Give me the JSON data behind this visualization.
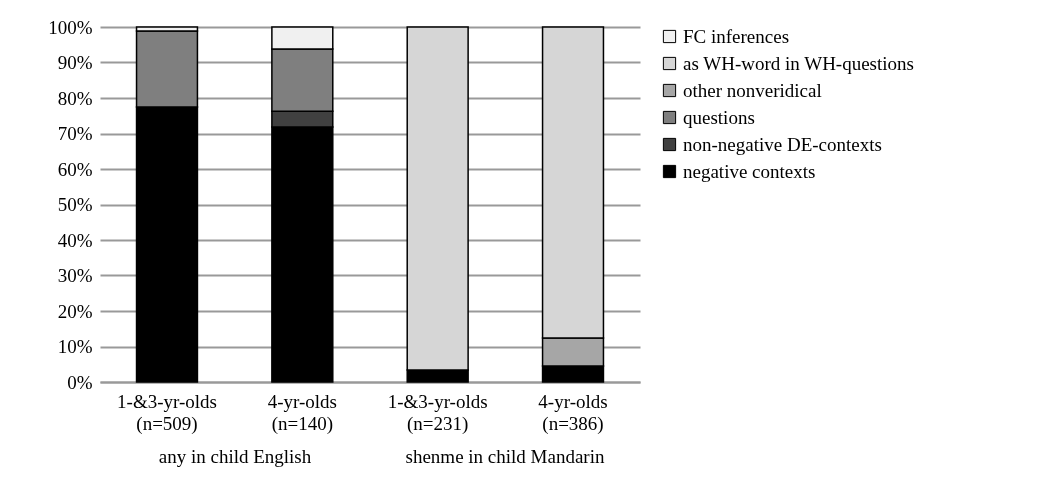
{
  "chart_data": {
    "type": "bar",
    "stacked": true,
    "grid": "y",
    "legend": "right",
    "categories": [
      "1-&3-yr-olds\n(n=509)",
      "4-yr-olds\n(n=140)",
      "1-&3-yr-olds\n(n=231)",
      "4-yr-olds\n(n=386)"
    ],
    "series": [
      {
        "name": "negative contexts",
        "color": "#000000",
        "values": [
          77.5,
          71.8,
          3.4,
          4.5
        ]
      },
      {
        "name": "non-negative DE-contexts",
        "color": "#404040",
        "values": [
          null,
          4.5,
          null,
          null
        ]
      },
      {
        "name": "questions",
        "color": "#7f7f7f",
        "values": [
          21.4,
          17.5,
          null,
          null
        ]
      },
      {
        "name": "other nonveridical",
        "color": "#a6a6a6",
        "values": [
          null,
          null,
          null,
          7.9
        ]
      },
      {
        "name": "as WH-word in WH-questions",
        "color": "#d6d6d6",
        "values": [
          null,
          null,
          96.6,
          87.6
        ]
      },
      {
        "name": "FC inferences",
        "color": "#f0f0f0",
        "values": [
          1.1,
          6.2,
          null,
          null
        ]
      }
    ],
    "ylim": [
      0,
      100
    ],
    "yticks": [
      {
        "value": 0,
        "label": "0%"
      },
      {
        "value": 10,
        "label": "10%"
      },
      {
        "value": 20,
        "label": "20%"
      },
      {
        "value": 30,
        "label": "30%"
      },
      {
        "value": 40,
        "label": "40%"
      },
      {
        "value": 50,
        "label": "50%"
      },
      {
        "value": 60,
        "label": "60%"
      },
      {
        "value": 70,
        "label": "70%"
      },
      {
        "value": 80,
        "label": "80%"
      },
      {
        "value": 90,
        "label": "90%"
      },
      {
        "value": 100,
        "label": "100%"
      }
    ],
    "annotations": [
      "any in child English",
      "shenme in child Mandarin"
    ]
  }
}
